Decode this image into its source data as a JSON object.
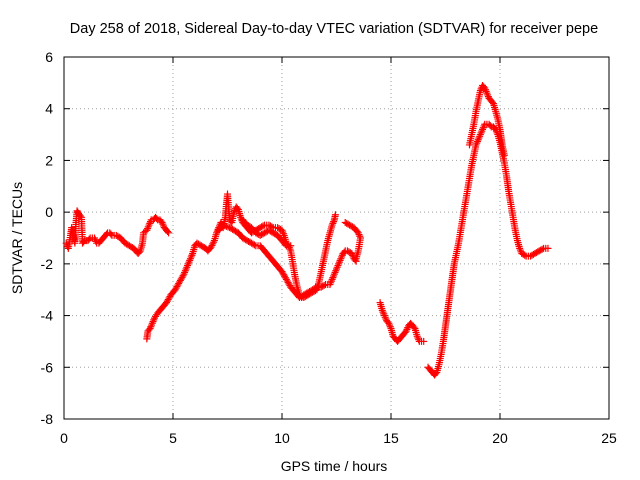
{
  "chart_data": {
    "type": "scatter",
    "title": "Day 258 of 2018, Sidereal Day-to-day VTEC variation (SDTVAR) for receiver pepe",
    "xlabel": "GPS time / hours",
    "ylabel": "SDTVAR / TECUs",
    "xlim": [
      0,
      25
    ],
    "ylim": [
      -8,
      6
    ],
    "xticks": [
      0,
      5,
      10,
      15,
      20,
      25
    ],
    "yticks": [
      -8,
      -6,
      -4,
      -2,
      0,
      2,
      4,
      6
    ],
    "grid": true,
    "marker": "+",
    "series_color": "#ff0000",
    "segments": [
      {
        "name": "arc-1",
        "points": [
          [
            0.1,
            -1.2
          ],
          [
            0.2,
            -1.4
          ],
          [
            0.3,
            -0.9
          ],
          [
            0.35,
            -0.6
          ],
          [
            0.45,
            -1.0
          ],
          [
            0.5,
            -1.2
          ],
          [
            0.55,
            -0.4
          ],
          [
            0.6,
            0.05
          ],
          [
            0.7,
            -0.1
          ],
          [
            0.8,
            -0.2
          ],
          [
            0.85,
            -1.2
          ],
          [
            0.95,
            -1.1
          ],
          [
            1.1,
            -1.1
          ],
          [
            1.2,
            -1.0
          ],
          [
            1.3,
            -1.0
          ],
          [
            1.4,
            -1.0
          ],
          [
            1.5,
            -1.2
          ],
          [
            1.6,
            -1.2
          ],
          [
            1.7,
            -1.1
          ],
          [
            1.8,
            -1.0
          ],
          [
            1.9,
            -0.9
          ],
          [
            2.0,
            -0.8
          ],
          [
            2.1,
            -0.8
          ],
          [
            2.2,
            -0.9
          ],
          [
            2.4,
            -0.9
          ],
          [
            2.6,
            -1.0
          ],
          [
            2.8,
            -1.2
          ],
          [
            3.0,
            -1.3
          ],
          [
            3.2,
            -1.4
          ],
          [
            3.4,
            -1.6
          ],
          [
            3.5,
            -1.5
          ],
          [
            3.6,
            -1.2
          ],
          [
            3.65,
            -0.8
          ],
          [
            3.8,
            -0.7
          ],
          [
            3.9,
            -0.5
          ],
          [
            4.0,
            -0.3
          ],
          [
            4.1,
            -0.3
          ],
          [
            4.2,
            -0.2
          ],
          [
            4.3,
            -0.3
          ],
          [
            4.4,
            -0.3
          ],
          [
            4.5,
            -0.4
          ],
          [
            4.6,
            -0.6
          ],
          [
            4.7,
            -0.7
          ],
          [
            4.8,
            -0.8
          ]
        ]
      },
      {
        "name": "arc-2",
        "points": [
          [
            3.8,
            -4.9
          ],
          [
            3.85,
            -4.6
          ],
          [
            3.95,
            -4.5
          ],
          [
            4.05,
            -4.3
          ],
          [
            4.15,
            -4.1
          ],
          [
            4.3,
            -3.9
          ],
          [
            4.5,
            -3.7
          ],
          [
            4.7,
            -3.5
          ],
          [
            4.9,
            -3.2
          ],
          [
            5.1,
            -3.0
          ],
          [
            5.3,
            -2.7
          ],
          [
            5.5,
            -2.4
          ],
          [
            5.7,
            -2.0
          ],
          [
            5.9,
            -1.6
          ],
          [
            6.0,
            -1.3
          ],
          [
            6.1,
            -1.2
          ],
          [
            6.3,
            -1.3
          ],
          [
            6.5,
            -1.4
          ],
          [
            6.6,
            -1.5
          ],
          [
            6.75,
            -1.35
          ],
          [
            6.9,
            -1.1
          ],
          [
            7.0,
            -0.8
          ],
          [
            7.1,
            -0.6
          ],
          [
            7.2,
            -0.4
          ],
          [
            7.3,
            -0.6
          ],
          [
            7.4,
            -0.2
          ],
          [
            7.45,
            0.3
          ],
          [
            7.5,
            0.7
          ],
          [
            7.55,
            0.2
          ],
          [
            7.6,
            -0.3
          ],
          [
            7.7,
            -0.4
          ],
          [
            7.8,
            0.0
          ],
          [
            7.9,
            0.2
          ],
          [
            8.0,
            0.1
          ],
          [
            8.1,
            -0.2
          ],
          [
            8.2,
            -0.4
          ],
          [
            8.4,
            -0.6
          ],
          [
            8.6,
            -0.8
          ],
          [
            8.8,
            -0.7
          ],
          [
            9.0,
            -0.6
          ],
          [
            9.2,
            -0.5
          ],
          [
            9.4,
            -0.5
          ],
          [
            9.6,
            -0.6
          ],
          [
            9.8,
            -0.6
          ],
          [
            10.0,
            -0.7
          ],
          [
            10.1,
            -0.9
          ],
          [
            10.2,
            -1.2
          ],
          [
            10.3,
            -1.3
          ],
          [
            10.4,
            -1.5
          ],
          [
            10.5,
            -2.0
          ],
          [
            10.6,
            -2.5
          ],
          [
            10.7,
            -2.9
          ],
          [
            10.8,
            -3.2
          ],
          [
            10.9,
            -3.3
          ],
          [
            11.0,
            -3.2
          ],
          [
            11.2,
            -3.1
          ],
          [
            11.4,
            -3.0
          ],
          [
            11.6,
            -2.9
          ],
          [
            11.8,
            -2.9
          ],
          [
            12.0,
            -2.8
          ],
          [
            12.2,
            -2.8
          ],
          [
            12.3,
            -2.6
          ],
          [
            12.4,
            -2.4
          ],
          [
            12.5,
            -2.2
          ],
          [
            12.6,
            -2.0
          ],
          [
            12.7,
            -1.8
          ],
          [
            12.8,
            -1.6
          ],
          [
            12.9,
            -1.5
          ],
          [
            13.0,
            -1.5
          ],
          [
            13.2,
            -1.6
          ],
          [
            13.3,
            -1.8
          ],
          [
            13.4,
            -1.9
          ]
        ]
      },
      {
        "name": "arc-3",
        "points": [
          [
            7.1,
            -0.7
          ],
          [
            7.3,
            -0.5
          ],
          [
            7.6,
            -0.6
          ],
          [
            7.8,
            -0.7
          ],
          [
            8.0,
            -0.8
          ],
          [
            8.2,
            -1.0
          ],
          [
            8.4,
            -1.1
          ],
          [
            8.6,
            -1.2
          ],
          [
            8.8,
            -1.3
          ],
          [
            9.0,
            -1.3
          ],
          [
            9.2,
            -1.5
          ],
          [
            9.4,
            -1.7
          ],
          [
            9.6,
            -1.9
          ],
          [
            9.8,
            -2.1
          ],
          [
            10.0,
            -2.3
          ],
          [
            10.2,
            -2.6
          ],
          [
            10.4,
            -2.9
          ],
          [
            10.6,
            -3.1
          ],
          [
            10.8,
            -3.3
          ],
          [
            11.0,
            -3.3
          ],
          [
            11.2,
            -3.2
          ],
          [
            11.4,
            -3.1
          ],
          [
            11.6,
            -3.0
          ],
          [
            11.7,
            -2.7
          ],
          [
            11.8,
            -2.3
          ],
          [
            11.9,
            -1.9
          ],
          [
            12.0,
            -1.5
          ],
          [
            12.1,
            -1.1
          ],
          [
            12.2,
            -0.8
          ],
          [
            12.3,
            -0.5
          ],
          [
            12.4,
            -0.3
          ],
          [
            12.45,
            -0.1
          ]
        ]
      },
      {
        "name": "arc-4",
        "points": [
          [
            8.2,
            -0.3
          ],
          [
            8.4,
            -0.5
          ],
          [
            8.6,
            -0.6
          ],
          [
            8.8,
            -0.8
          ],
          [
            9.0,
            -0.9
          ],
          [
            9.2,
            -0.8
          ],
          [
            9.4,
            -0.7
          ],
          [
            9.6,
            -0.8
          ],
          [
            9.8,
            -0.9
          ],
          [
            10.0,
            -1.1
          ],
          [
            10.2,
            -1.3
          ],
          [
            10.4,
            -1.3
          ]
        ]
      },
      {
        "name": "arc-5",
        "points": [
          [
            12.9,
            -0.4
          ],
          [
            13.1,
            -0.5
          ],
          [
            13.3,
            -0.6
          ],
          [
            13.5,
            -0.8
          ],
          [
            13.6,
            -1.0
          ],
          [
            13.5,
            -1.5
          ],
          [
            13.4,
            -1.8
          ]
        ]
      },
      {
        "name": "arc-6",
        "points": [
          [
            14.5,
            -3.5
          ],
          [
            14.6,
            -3.8
          ],
          [
            14.7,
            -4.0
          ],
          [
            14.8,
            -4.2
          ],
          [
            14.9,
            -4.3
          ],
          [
            15.0,
            -4.5
          ],
          [
            15.1,
            -4.8
          ],
          [
            15.2,
            -4.9
          ],
          [
            15.3,
            -5.0
          ],
          [
            15.4,
            -4.9
          ],
          [
            15.5,
            -4.8
          ],
          [
            15.6,
            -4.7
          ],
          [
            15.7,
            -4.6
          ],
          [
            15.8,
            -4.4
          ],
          [
            15.9,
            -4.3
          ],
          [
            16.0,
            -4.4
          ],
          [
            16.1,
            -4.5
          ],
          [
            16.2,
            -4.8
          ],
          [
            16.3,
            -5.0
          ],
          [
            16.4,
            -5.0
          ],
          [
            16.5,
            -5.0
          ]
        ]
      },
      {
        "name": "arc-7",
        "points": [
          [
            16.7,
            -6.0
          ],
          [
            16.8,
            -6.1
          ],
          [
            16.9,
            -6.2
          ],
          [
            17.0,
            -6.3
          ],
          [
            17.1,
            -6.2
          ],
          [
            17.2,
            -5.9
          ],
          [
            17.3,
            -5.5
          ],
          [
            17.4,
            -5.0
          ],
          [
            17.5,
            -4.4
          ],
          [
            17.6,
            -3.8
          ],
          [
            17.7,
            -3.2
          ],
          [
            17.8,
            -2.6
          ],
          [
            17.9,
            -2.0
          ],
          [
            18.0,
            -1.6
          ],
          [
            18.1,
            -1.2
          ],
          [
            18.2,
            -0.7
          ],
          [
            18.3,
            -0.2
          ],
          [
            18.4,
            0.3
          ],
          [
            18.5,
            0.8
          ],
          [
            18.6,
            1.3
          ],
          [
            18.7,
            1.8
          ],
          [
            18.8,
            2.2
          ],
          [
            18.9,
            2.6
          ],
          [
            19.0,
            2.8
          ],
          [
            19.1,
            3.0
          ],
          [
            19.2,
            3.2
          ],
          [
            19.3,
            3.4
          ],
          [
            19.4,
            3.4
          ],
          [
            19.5,
            3.4
          ],
          [
            19.6,
            3.3
          ],
          [
            19.7,
            3.3
          ],
          [
            19.8,
            3.2
          ],
          [
            19.9,
            3.0
          ],
          [
            20.0,
            2.7
          ],
          [
            20.1,
            2.3
          ],
          [
            20.2,
            1.9
          ],
          [
            20.3,
            1.4
          ],
          [
            20.4,
            0.8
          ],
          [
            20.5,
            0.3
          ],
          [
            20.6,
            -0.2
          ],
          [
            20.7,
            -0.7
          ],
          [
            20.8,
            -1.1
          ],
          [
            20.9,
            -1.4
          ],
          [
            21.0,
            -1.6
          ],
          [
            21.2,
            -1.7
          ],
          [
            21.4,
            -1.7
          ],
          [
            21.6,
            -1.6
          ],
          [
            21.8,
            -1.5
          ],
          [
            22.0,
            -1.4
          ],
          [
            22.2,
            -1.4
          ]
        ]
      },
      {
        "name": "arc-8",
        "points": [
          [
            18.6,
            2.6
          ],
          [
            18.7,
            3.0
          ],
          [
            18.8,
            3.4
          ],
          [
            18.9,
            3.9
          ],
          [
            19.0,
            4.3
          ],
          [
            19.1,
            4.7
          ],
          [
            19.2,
            4.9
          ],
          [
            19.3,
            4.8
          ],
          [
            19.4,
            4.6
          ],
          [
            19.5,
            4.4
          ],
          [
            19.6,
            4.3
          ],
          [
            19.7,
            4.2
          ],
          [
            19.8,
            3.9
          ],
          [
            19.9,
            3.6
          ],
          [
            20.0,
            3.2
          ],
          [
            20.1,
            2.6
          ],
          [
            20.2,
            2.2
          ]
        ]
      }
    ]
  }
}
